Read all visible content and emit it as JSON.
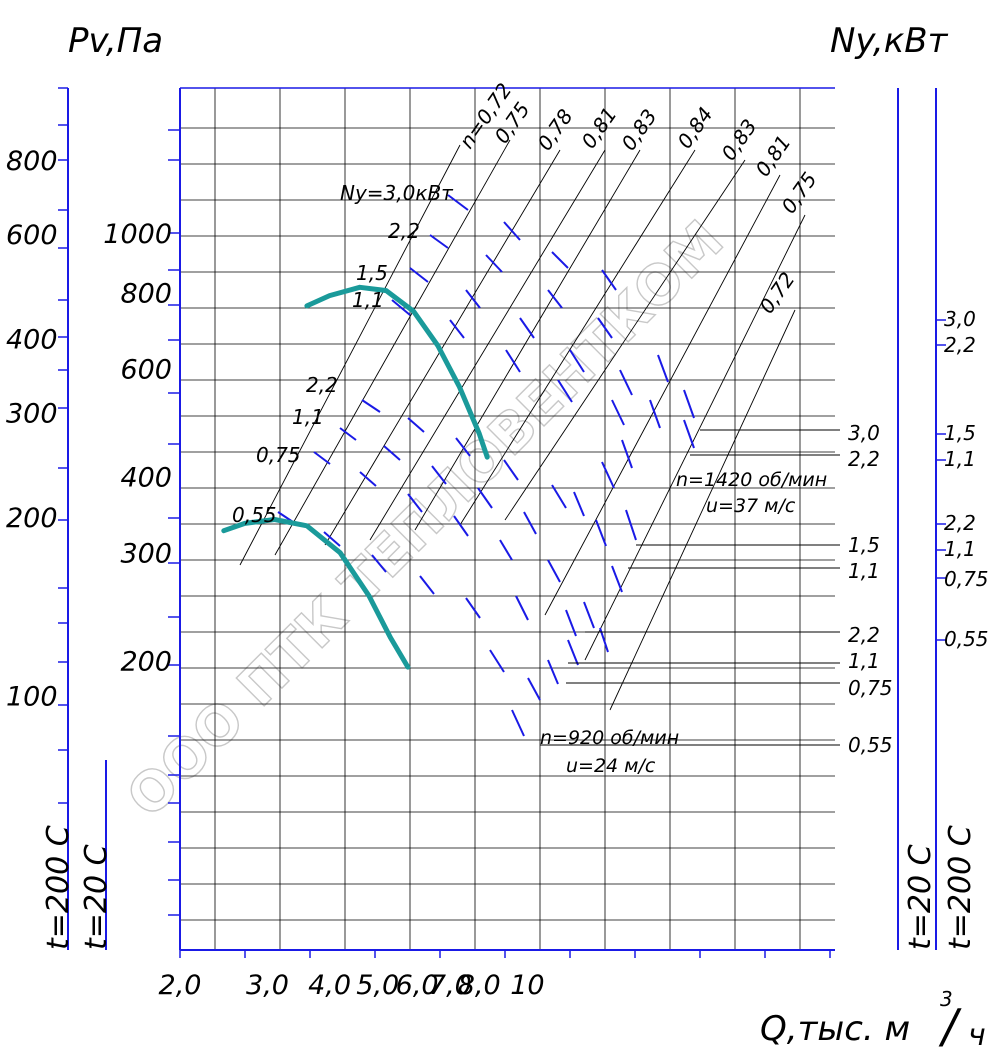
{
  "chart_data": {
    "type": "line",
    "title": "",
    "axes": {
      "left_outer": {
        "label": "Pv,Па",
        "ticks": [
          "800",
          "600",
          "400",
          "300",
          "200",
          "100"
        ],
        "scale": "log"
      },
      "left_inner": {
        "ticks": [
          "1000",
          "800",
          "600",
          "400",
          "300",
          "200"
        ],
        "scale": "log"
      },
      "right_outer": {
        "label": "Ny,кВт"
      },
      "x": {
        "label_main": "Q,тыс. м",
        "label_sup": "3",
        "label_slash": "/",
        "label_unit": "ч",
        "ticks": [
          "2,0",
          "3,0",
          "4,0",
          "5,0",
          "6,0",
          "7,0",
          "8,0",
          "10"
        ],
        "scale": "log"
      },
      "temp_left": [
        "t=200 С",
        "t=20 С"
      ],
      "temp_right": [
        "t=20 С",
        "t=200 С"
      ]
    },
    "series": [
      {
        "name": "n=1420 об/мин",
        "q": [
          3.6,
          4.0,
          4.6,
          5.2,
          5.9,
          6.6,
          7.3,
          8.0,
          8.3
        ],
        "p": [
          760,
          790,
          815,
          805,
          745,
          655,
          560,
          470,
          430
        ]
      },
      {
        "name": "n=920 об/мин",
        "q": [
          2.45,
          2.7,
          3.1,
          3.6,
          4.2,
          4.8,
          5.3,
          5.75
        ],
        "p": [
          326,
          335,
          340,
          332,
          300,
          255,
          218,
          195
        ]
      }
    ],
    "curve_labels": {
      "n1420": "n=1420 об/мин",
      "u37": "u=37 м/с",
      "n920": "n=920 об/мин",
      "u24": "u=24 м/с"
    },
    "efficiency_labels": [
      "n=0,72",
      "0,75",
      "0,78",
      "0,81",
      "0,83",
      "0,84",
      "0,83",
      "0,81",
      "0,75",
      "0,72"
    ],
    "power_labels_upper": [
      "Ny=3,0кВт",
      "2,2",
      "1,5",
      "1,1"
    ],
    "power_labels_lower": [
      "2,2",
      "1,1",
      "0,75",
      "0,55"
    ],
    "power_scale_1420": [
      "3,0",
      "2,2",
      "1,5",
      "1,1"
    ],
    "power_scale_920": [
      "2,2",
      "1,1",
      "0,75",
      "0,55"
    ],
    "power_scale_far_right": [
      "3,0",
      "2,2",
      "1,5",
      "1,1",
      "2,2",
      "1,1",
      "0,75",
      "0,55"
    ],
    "colors": {
      "axis": "#1a1ae6",
      "grid": "#000000",
      "curve": "#1a9a9a",
      "text": "#000000"
    },
    "watermark": "ООО ПТК ТЕПЛОВЕНТКОМ"
  }
}
